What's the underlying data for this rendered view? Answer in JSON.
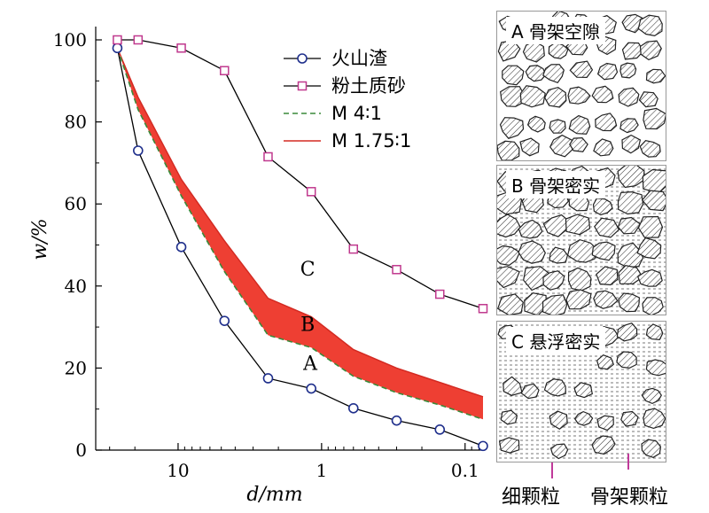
{
  "chart_data": {
    "type": "line",
    "xlabel": "d/mm",
    "ylabel": "w/%",
    "x_scale": "log-reversed",
    "xlim": [
      0.075,
      37.5
    ],
    "ylim": [
      0,
      100
    ],
    "x_ticks": [
      {
        "value": 10,
        "label": "10"
      },
      {
        "value": 1,
        "label": "1"
      },
      {
        "value": 0.1,
        "label": "0.1"
      }
    ],
    "y_ticks": [
      0,
      20,
      40,
      60,
      80,
      100
    ],
    "legend": [
      "火山渣",
      "粉土质砂",
      "M 4∶1",
      "M 1.75∶1"
    ],
    "series": [
      {
        "name": "火山渣",
        "marker": "circle",
        "color": "#1f2f8c",
        "x": [
          26.5,
          19,
          9.5,
          4.75,
          2.36,
          1.18,
          0.6,
          0.3,
          0.15,
          0.075
        ],
        "y": [
          98,
          73,
          49.5,
          31.5,
          17.5,
          15,
          10.2,
          7.2,
          5,
          1
        ]
      },
      {
        "name": "粉土质砂",
        "marker": "square",
        "color": "#c0398e",
        "x": [
          26.5,
          19,
          9.5,
          4.75,
          2.36,
          1.18,
          0.6,
          0.3,
          0.15,
          0.075
        ],
        "y": [
          100,
          100,
          98,
          92.5,
          71.5,
          63,
          49,
          44,
          38,
          34.5
        ]
      },
      {
        "name": "M 4∶1",
        "dash": true,
        "color": "#3a8a3a",
        "x": [
          26.5,
          19,
          9.5,
          4.75,
          2.36,
          1.18,
          0.6,
          0.3,
          0.15,
          0.075
        ],
        "y": [
          98,
          83,
          62,
          43.5,
          28,
          25,
          18,
          14,
          11,
          7.5
        ]
      },
      {
        "name": "M 1.75∶1",
        "color": "#e8302a",
        "x": [
          26.5,
          19,
          9.5,
          4.75,
          2.36,
          1.18,
          0.6,
          0.3,
          0.15,
          0.075
        ],
        "y": [
          98,
          86,
          66,
          51,
          37,
          32.5,
          24.5,
          20,
          16.5,
          13
        ]
      }
    ],
    "annotations": [
      {
        "text": "C",
        "x": 1.25,
        "y": 42.5
      },
      {
        "text": "B",
        "x": 1.25,
        "y": 29
      },
      {
        "text": "A",
        "x": 1.2,
        "y": 19.5
      }
    ]
  },
  "panels": [
    {
      "title": "A 骨架空隙"
    },
    {
      "title": "B 骨架密实"
    },
    {
      "title": "C 悬浮密实"
    }
  ],
  "footer": {
    "fine_label": "细颗粒",
    "skeleton_label": "骨架颗粒"
  }
}
